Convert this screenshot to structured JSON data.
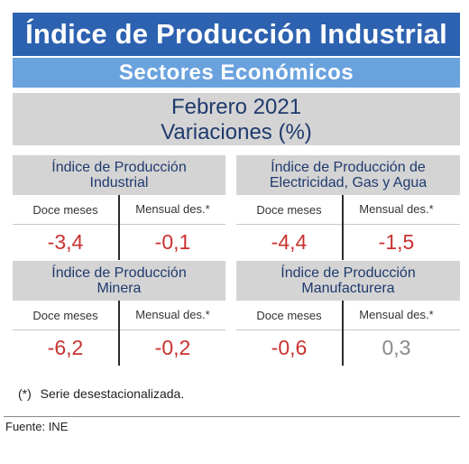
{
  "header": {
    "title": "Índice de Producción Industrial",
    "subtitle": "Sectores Económicos",
    "period": "Febrero 2021",
    "unit": "Variaciones (%)"
  },
  "columns": {
    "twelve_months": "Doce meses",
    "monthly": "Mensual des.*"
  },
  "panels": [
    {
      "title_line1": "Índice de Producción",
      "title_line2": "Industrial",
      "twelve_months": "-3,4",
      "monthly": "-0,1"
    },
    {
      "title_line1": "Índice de Producción de",
      "title_line2": "Electricidad, Gas y Agua",
      "twelve_months": "-4,4",
      "monthly": "-1,5"
    },
    {
      "title_line1": "Índice de Producción",
      "title_line2": "Minera",
      "twelve_months": "-6,2",
      "monthly": "-0,2"
    },
    {
      "title_line1": "Índice de Producción",
      "title_line2": "Manufacturera",
      "twelve_months": "-0,6",
      "monthly": "0,3"
    }
  ],
  "colors": {
    "title_bg": "#2d62b0",
    "subtitle_bg": "#6aa2de",
    "negative": "#c8322f",
    "positive": "#8a8a8a"
  },
  "footnote": {
    "mark": "(*)",
    "text": "Serie desestacionalizada."
  },
  "source": "Fuente: INE"
}
